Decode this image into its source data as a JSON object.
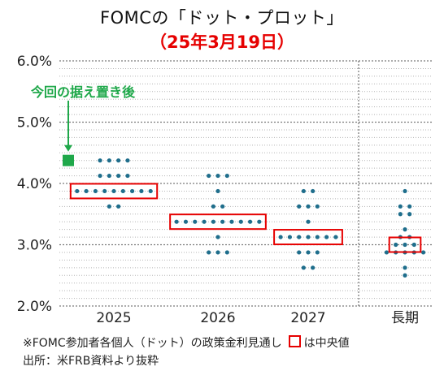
{
  "title": "FOMCの「ドット・プロット」",
  "subtitle": "（25年3月19日）",
  "annotation": "今回の据え置き後",
  "note": "※FOMC参加者各個人（ドット）の政策金利見通し",
  "legend_label": "は中央値",
  "source": "出所：米FRB資料より抜粋",
  "colors": {
    "dot": "#1f6e8c",
    "median_box": "#e60000",
    "current_marker": "#1fa84a",
    "annotation": "#1fa84a",
    "title_sub": "#e60000"
  },
  "chart_data": {
    "type": "scatter",
    "title": "FOMCの「ドット・プロット」",
    "subtitle": "（25年3月19日）",
    "categories": [
      "2025",
      "2026",
      "2027",
      "長期"
    ],
    "ylim": [
      2.0,
      6.0
    ],
    "yticks": [
      "2.0%",
      "3.0%",
      "4.0%",
      "5.0%",
      "6.0%"
    ],
    "grid": "dotted, every 0.125%",
    "current_rate": 4.375,
    "dots": [
      [
        {
          "y": 4.375,
          "n": 4
        },
        {
          "y": 4.125,
          "n": 4
        },
        {
          "y": 3.875,
          "n": 9
        },
        {
          "y": 3.625,
          "n": 2
        }
      ],
      [
        {
          "y": 4.125,
          "n": 3
        },
        {
          "y": 3.875,
          "n": 1
        },
        {
          "y": 3.625,
          "n": 2
        },
        {
          "y": 3.375,
          "n": 10
        },
        {
          "y": 3.125,
          "n": 1
        },
        {
          "y": 2.875,
          "n": 3
        }
      ],
      [
        {
          "y": 3.875,
          "n": 2
        },
        {
          "y": 3.625,
          "n": 3
        },
        {
          "y": 3.375,
          "n": 1
        },
        {
          "y": 3.125,
          "n": 7
        },
        {
          "y": 2.875,
          "n": 3
        },
        {
          "y": 2.625,
          "n": 2
        }
      ],
      [
        {
          "y": 3.875,
          "n": 1
        },
        {
          "y": 3.625,
          "n": 2
        },
        {
          "y": 3.5,
          "n": 2
        },
        {
          "y": 3.25,
          "n": 1
        },
        {
          "y": 3.125,
          "n": 2
        },
        {
          "y": 3.0,
          "n": 3
        },
        {
          "y": 2.875,
          "n": 5
        },
        {
          "y": 2.625,
          "n": 1
        },
        {
          "y": 2.5,
          "n": 1
        }
      ]
    ],
    "medians": [
      3.875,
      3.375,
      3.125,
      3.0
    ]
  }
}
